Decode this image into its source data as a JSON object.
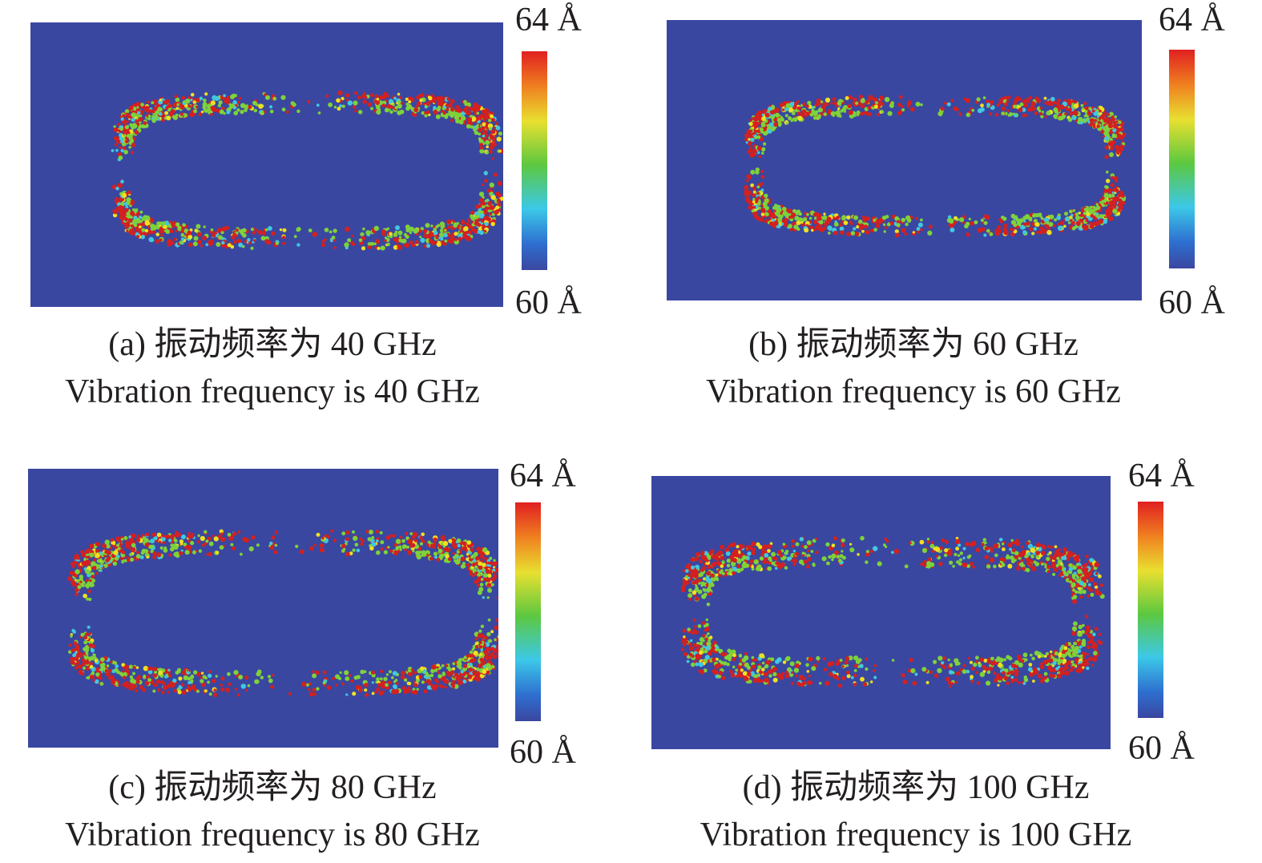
{
  "panels": [
    {
      "id": "a",
      "caption_zh": "(a) 振动频率为 40 GHz",
      "caption_en": "Vibration frequency is 40 GHz",
      "colorbar": {
        "max_label": "64 Å",
        "min_label": "60 Å"
      }
    },
    {
      "id": "b",
      "caption_zh": "(b) 振动频率为 60 GHz",
      "caption_en": "Vibration frequency is 60 GHz",
      "colorbar": {
        "max_label": "64 Å",
        "min_label": "60 Å"
      }
    },
    {
      "id": "c",
      "caption_zh": "(c) 振动频率为 80 GHz",
      "caption_en": "Vibration frequency is 80 GHz",
      "colorbar": {
        "max_label": "64 Å",
        "min_label": "60 Å"
      }
    },
    {
      "id": "d",
      "caption_zh": "(d) 振动频率为 100 GHz",
      "caption_en": "Vibration frequency is 100 GHz",
      "colorbar": {
        "max_label": "64 Å",
        "min_label": "60 Å"
      }
    }
  ],
  "colors": {
    "background_blue": "#3a47a0",
    "ring_red": "#d42020",
    "ring_green": "#7ed23a",
    "ring_yellow": "#f0e020",
    "ring_cyan": "#40c8e0",
    "colorbar_stops": [
      "#3a47a0",
      "#2e6fd0",
      "#3cc8e8",
      "#5cc840",
      "#e8e030",
      "#f08020",
      "#e02020"
    ]
  }
}
